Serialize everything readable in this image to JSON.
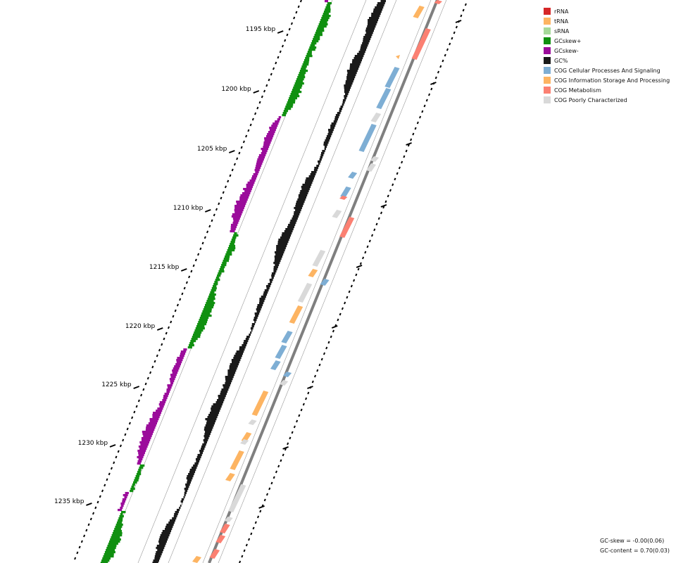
{
  "legend": [
    {
      "label": "rRNA",
      "color": "#d62728"
    },
    {
      "label": "tRNA",
      "color": "#fdb462"
    },
    {
      "label": "sRNA",
      "color": "#a6d99a"
    },
    {
      "label": "GCskew+",
      "color": "#109010"
    },
    {
      "label": "GCskew-",
      "color": "#9b0c9b"
    },
    {
      "label": "GC%",
      "color": "#1a1a1a"
    },
    {
      "label": "COG Cellular Processes And Signaling",
      "color": "#7eaed4"
    },
    {
      "label": "COG Information Storage And Processing",
      "color": "#fdb462"
    },
    {
      "label": "COG Metabolism",
      "color": "#fb8072"
    },
    {
      "label": "COG Poorly Characterized",
      "color": "#d9d9d9"
    }
  ],
  "ticks": [
    {
      "label": "1195 kbp"
    },
    {
      "label": "1200 kbp"
    },
    {
      "label": "1205 kbp"
    },
    {
      "label": "1210 kbp"
    },
    {
      "label": "1215 kbp"
    },
    {
      "label": "1220 kbp"
    },
    {
      "label": "1225 kbp"
    },
    {
      "label": "1230 kbp"
    },
    {
      "label": "1235 kbp"
    }
  ],
  "stats": {
    "gc_skew": "GC-skew = -0.00(0.06)",
    "gc_content": "GC-content = 0.70(0.03)"
  }
}
